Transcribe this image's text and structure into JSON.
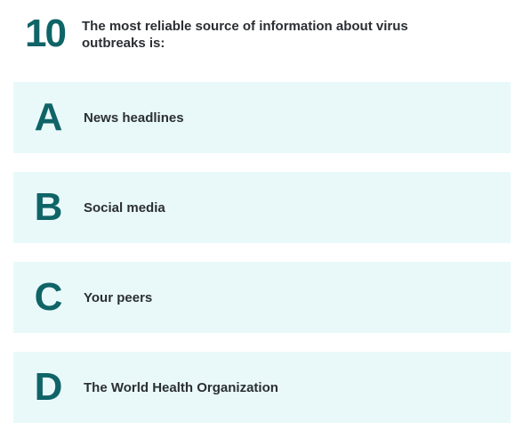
{
  "question": {
    "number": "10",
    "text": "The most reliable source of information about virus outbreaks is:"
  },
  "options": [
    {
      "letter": "A",
      "label": "News headlines"
    },
    {
      "letter": "B",
      "label": "Social media"
    },
    {
      "letter": "C",
      "label": "Your peers"
    },
    {
      "letter": "D",
      "label": "The World Health Organization"
    }
  ],
  "colors": {
    "accent": "#0f6467",
    "option_bg": "#e9f9fa",
    "text": "#2b2f33"
  }
}
